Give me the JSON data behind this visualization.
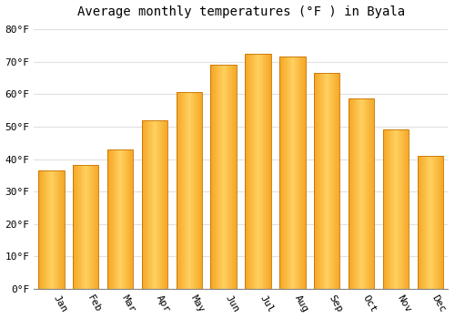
{
  "months": [
    "Jan",
    "Feb",
    "Mar",
    "Apr",
    "May",
    "Jun",
    "Jul",
    "Aug",
    "Sep",
    "Oct",
    "Nov",
    "Dec"
  ],
  "values": [
    36.5,
    38.3,
    43.0,
    52.0,
    60.5,
    69.0,
    72.3,
    71.5,
    66.5,
    58.7,
    49.2,
    41.0
  ],
  "bar_color_left": "#F5A623",
  "bar_color_center": "#FFD060",
  "bar_color_right": "#F5A623",
  "bar_outline_color": "#C87000",
  "background_color": "#FFFFFF",
  "grid_color": "#E0E0E0",
  "title": "Average monthly temperatures (°F ) in Byala",
  "title_fontsize": 10,
  "ylim": [
    0,
    82
  ],
  "yticks": [
    0,
    10,
    20,
    30,
    40,
    50,
    60,
    70,
    80
  ],
  "tick_fontsize": 8,
  "font_family": "monospace",
  "bar_width": 0.75,
  "n_gradient_strips": 50
}
